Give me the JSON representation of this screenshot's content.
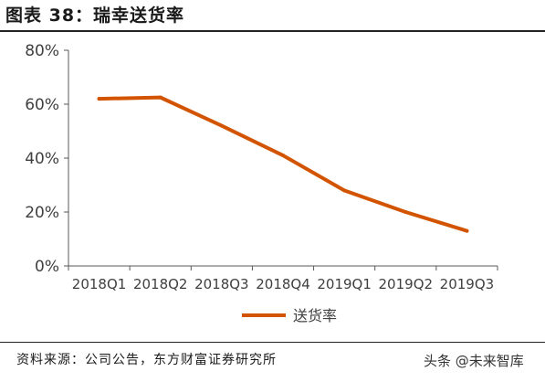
{
  "header": {
    "title": "图表 38：瑞幸送货率"
  },
  "chart_data": {
    "type": "line",
    "title": "",
    "xlabel": "",
    "ylabel": "",
    "categories": [
      "2018Q1",
      "2018Q2",
      "2018Q3",
      "2018Q4",
      "2019Q1",
      "2019Q2",
      "2019Q3"
    ],
    "yticks": [
      "0%",
      "20%",
      "40%",
      "60%",
      "80%"
    ],
    "ylim": [
      0,
      80
    ],
    "grid": false,
    "legend_position": "bottom",
    "series": [
      {
        "name": "送货率",
        "color": "#d35400",
        "values": [
          62,
          62.5,
          52,
          41,
          28,
          20,
          13
        ]
      }
    ]
  },
  "footer": {
    "source": "资料来源：公司公告，东方财富证券研究所",
    "watermark": "头条 @未来智库"
  }
}
